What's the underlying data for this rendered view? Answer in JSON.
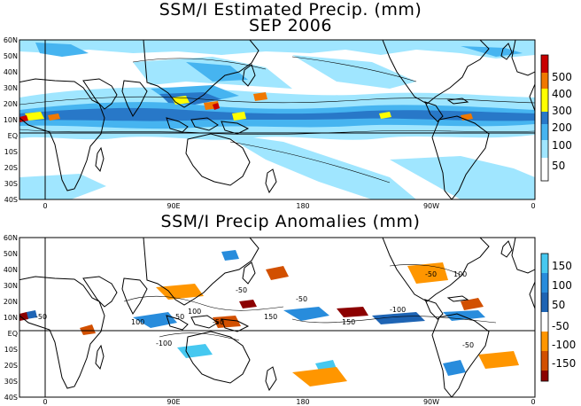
{
  "top_panel": {
    "title": "SSM/I Estimated Precip. (mm)",
    "subtitle": "SEP 2006",
    "colorbar": {
      "labels": [
        "500",
        "400",
        "300",
        "200",
        "100",
        "50"
      ],
      "colors": [
        "#c80000",
        "#f07800",
        "#ffff00",
        "#2878c8",
        "#46b4f0",
        "#a0e6ff",
        "#ffffff"
      ]
    }
  },
  "bottom_panel": {
    "title": "SSM/I Precip Anomalies (mm)",
    "colorbar": {
      "labels": [
        "150",
        "100",
        "50",
        "-50",
        "-100",
        "-150"
      ],
      "colors": [
        "#46c8f0",
        "#288cdc",
        "#1e64b4",
        "#ffffff",
        "#ff9600",
        "#d25000",
        "#8c0000"
      ]
    }
  },
  "axes": {
    "lat_labels": [
      "60N",
      "50N",
      "40N",
      "30N",
      "20N",
      "10N",
      "EQ",
      "10S",
      "20S",
      "30S",
      "40S"
    ],
    "lon_labels": [
      "0",
      "90E",
      "180",
      "90W",
      "0"
    ]
  },
  "contour_labels": [
    "50",
    "100",
    "150",
    "-50",
    "-100"
  ],
  "colors": {
    "land_outline": "#000000",
    "frame": "#000000"
  }
}
